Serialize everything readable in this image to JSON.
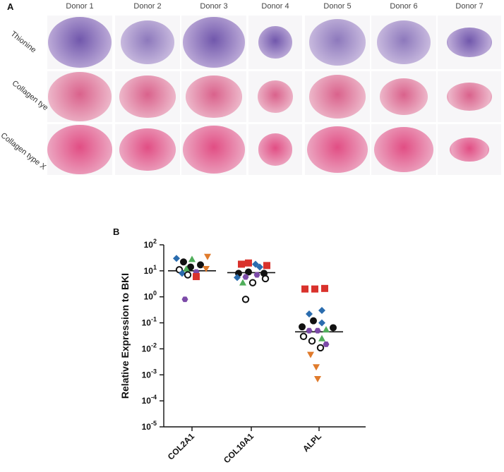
{
  "panel_a": {
    "letter": "A",
    "donors": [
      "Donor 1",
      "Donor 2",
      "Donor 3",
      "Donor 4",
      "Donor 5",
      "Donor 6",
      "Donor 7"
    ],
    "stains": [
      {
        "label": "Thionine",
        "color": "#6a4fa8",
        "bg": "#b9a6d6"
      },
      {
        "label": "Collagen tye II",
        "color": "#d85a86",
        "bg": "#ecb2c6"
      },
      {
        "label": "Collagen type X",
        "color": "#e0457e",
        "bg": "#eba0bd"
      }
    ]
  },
  "panel_b": {
    "letter": "B",
    "chart_data": {
      "type": "scatter",
      "ylabel": "Relative Expression to BKI",
      "yscale": "log",
      "ylim_exponent": [
        -5,
        2
      ],
      "ytick_labels": [
        {
          "base": "10",
          "exp": "2"
        },
        {
          "base": "10",
          "exp": "1"
        },
        {
          "base": "10",
          "exp": "0"
        },
        {
          "base": "10",
          "exp": "-1"
        },
        {
          "base": "10",
          "exp": "-2"
        },
        {
          "base": "10",
          "exp": "-3"
        },
        {
          "base": "10",
          "exp": "-4"
        },
        {
          "base": "10",
          "exp": "-5"
        }
      ],
      "categories": [
        "COL2A1",
        "COL10A1",
        "ALPL"
      ],
      "medians": [
        10,
        8.5,
        0.045
      ],
      "markers": {
        "circle_black": "#111111",
        "circle_open": "#111111",
        "square_red": "#d9322c",
        "diamond_blue": "#2a6cae",
        "triangle_green": "#4fae5a",
        "hexagon_purple": "#7c4aa8",
        "triangle_down_orange": "#e07b2c"
      },
      "points": [
        {
          "cat": 0,
          "marker": "diamond_blue",
          "y": 30,
          "dx": -22
        },
        {
          "cat": 0,
          "marker": "circle_black",
          "y": 22,
          "dx": -12
        },
        {
          "cat": 0,
          "marker": "triangle_green",
          "y": 28,
          "dx": 0
        },
        {
          "cat": 0,
          "marker": "triangle_down_orange",
          "y": 35,
          "dx": 22
        },
        {
          "cat": 0,
          "marker": "circle_open",
          "y": 11,
          "dx": -18
        },
        {
          "cat": 0,
          "marker": "circle_black",
          "y": 14,
          "dx": -2
        },
        {
          "cat": 0,
          "marker": "circle_black",
          "y": 17,
          "dx": 12
        },
        {
          "cat": 0,
          "marker": "triangle_green",
          "y": 12,
          "dx": -8
        },
        {
          "cat": 0,
          "marker": "hexagon_purple",
          "y": 9,
          "dx": 6
        },
        {
          "cat": 0,
          "marker": "diamond_blue",
          "y": 8,
          "dx": -14
        },
        {
          "cat": 0,
          "marker": "circle_open",
          "y": 7,
          "dx": -6
        },
        {
          "cat": 0,
          "marker": "square_red",
          "y": 6,
          "dx": 6
        },
        {
          "cat": 0,
          "marker": "triangle_down_orange",
          "y": 12,
          "dx": 20
        },
        {
          "cat": 0,
          "marker": "hexagon_purple",
          "y": 0.8,
          "dx": -10
        },
        {
          "cat": 1,
          "marker": "square_red",
          "y": 18,
          "dx": -14
        },
        {
          "cat": 1,
          "marker": "square_red",
          "y": 20,
          "dx": -4
        },
        {
          "cat": 1,
          "marker": "diamond_blue",
          "y": 18,
          "dx": 6
        },
        {
          "cat": 1,
          "marker": "diamond_blue",
          "y": 14,
          "dx": 12
        },
        {
          "cat": 1,
          "marker": "square_red",
          "y": 16,
          "dx": 22
        },
        {
          "cat": 1,
          "marker": "circle_black",
          "y": 8,
          "dx": -18
        },
        {
          "cat": 1,
          "marker": "circle_black",
          "y": 9,
          "dx": -4
        },
        {
          "cat": 1,
          "marker": "hexagon_purple",
          "y": 7,
          "dx": 8
        },
        {
          "cat": 1,
          "marker": "circle_black",
          "y": 8,
          "dx": 18
        },
        {
          "cat": 1,
          "marker": "diamond_blue",
          "y": 5.5,
          "dx": -20
        },
        {
          "cat": 1,
          "marker": "hexagon_purple",
          "y": 5.8,
          "dx": -8
        },
        {
          "cat": 1,
          "marker": "triangle_green",
          "y": 3.5,
          "dx": -12
        },
        {
          "cat": 1,
          "marker": "circle_open",
          "y": 3.5,
          "dx": 2
        },
        {
          "cat": 1,
          "marker": "circle_open",
          "y": 5,
          "dx": 20
        },
        {
          "cat": 1,
          "marker": "circle_open",
          "y": 0.8,
          "dx": -8
        },
        {
          "cat": 2,
          "marker": "square_red",
          "y": 2,
          "dx": -20
        },
        {
          "cat": 2,
          "marker": "square_red",
          "y": 2,
          "dx": -6
        },
        {
          "cat": 2,
          "marker": "square_red",
          "y": 2.1,
          "dx": 8
        },
        {
          "cat": 2,
          "marker": "diamond_blue",
          "y": 0.3,
          "dx": 4
        },
        {
          "cat": 2,
          "marker": "diamond_blue",
          "y": 0.22,
          "dx": -14
        },
        {
          "cat": 2,
          "marker": "diamond_blue",
          "y": 0.1,
          "dx": 4
        },
        {
          "cat": 2,
          "marker": "circle_black",
          "y": 0.12,
          "dx": -8
        },
        {
          "cat": 2,
          "marker": "circle_black",
          "y": 0.07,
          "dx": -24
        },
        {
          "cat": 2,
          "marker": "hexagon_purple",
          "y": 0.05,
          "dx": -14
        },
        {
          "cat": 2,
          "marker": "hexagon_purple",
          "y": 0.05,
          "dx": -2
        },
        {
          "cat": 2,
          "marker": "circle_black",
          "y": 0.065,
          "dx": 20
        },
        {
          "cat": 2,
          "marker": "triangle_green",
          "y": 0.055,
          "dx": 10
        },
        {
          "cat": 2,
          "marker": "circle_open",
          "y": 0.03,
          "dx": -22
        },
        {
          "cat": 2,
          "marker": "circle_open",
          "y": 0.02,
          "dx": -10
        },
        {
          "cat": 2,
          "marker": "triangle_green",
          "y": 0.025,
          "dx": 4
        },
        {
          "cat": 2,
          "marker": "hexagon_purple",
          "y": 0.015,
          "dx": 10
        },
        {
          "cat": 2,
          "marker": "circle_open",
          "y": 0.011,
          "dx": 2
        },
        {
          "cat": 2,
          "marker": "triangle_down_orange",
          "y": 0.006,
          "dx": -12
        },
        {
          "cat": 2,
          "marker": "triangle_down_orange",
          "y": 0.002,
          "dx": -4
        },
        {
          "cat": 2,
          "marker": "triangle_down_orange",
          "y": 0.0007,
          "dx": -2
        }
      ]
    }
  }
}
